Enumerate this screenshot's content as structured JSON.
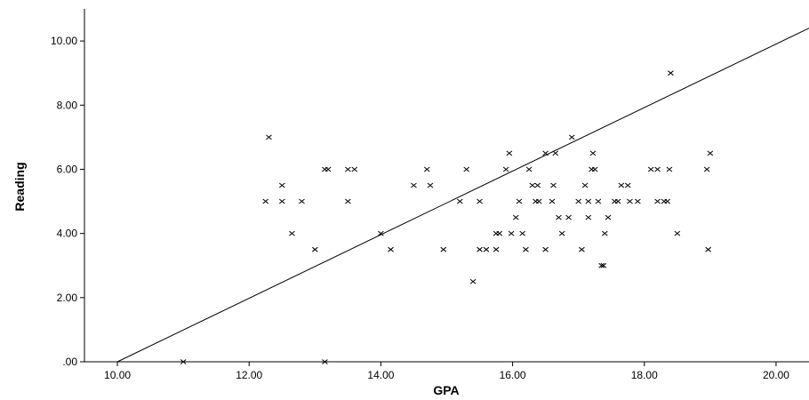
{
  "chart_data": {
    "type": "scatter",
    "xlabel": "GPA",
    "ylabel": "Reading",
    "xlim": [
      9.5,
      20.5
    ],
    "ylim": [
      0,
      11.0
    ],
    "xticks": [
      10,
      12,
      14,
      16,
      18,
      20
    ],
    "xtick_labels": [
      "10.00",
      "12.00",
      "14.00",
      "16.00",
      "18.00",
      "20.00"
    ],
    "yticks": [
      0,
      2,
      4,
      6,
      8,
      10
    ],
    "ytick_labels": [
      ".00",
      "2.00",
      "4.00",
      "6.00",
      "8.00",
      "10.00"
    ],
    "grid": false,
    "marker": "x",
    "colors": {
      "points": "#000000",
      "line": "#000000",
      "axes": "#000000"
    },
    "reference_line": {
      "from": [
        10.0,
        0.0
      ],
      "to": [
        20.5,
        10.4
      ]
    },
    "points": [
      [
        11.0,
        0.0
      ],
      [
        12.25,
        5.0
      ],
      [
        12.3,
        7.0
      ],
      [
        12.5,
        5.5
      ],
      [
        12.5,
        5.0
      ],
      [
        12.65,
        4.0
      ],
      [
        12.8,
        5.0
      ],
      [
        13.0,
        3.5
      ],
      [
        13.15,
        6.0
      ],
      [
        13.2,
        6.0
      ],
      [
        13.15,
        0.0
      ],
      [
        13.5,
        6.0
      ],
      [
        13.5,
        5.0
      ],
      [
        13.6,
        6.0
      ],
      [
        14.0,
        4.0
      ],
      [
        14.15,
        3.5
      ],
      [
        14.5,
        5.5
      ],
      [
        14.7,
        6.0
      ],
      [
        14.75,
        5.5
      ],
      [
        14.95,
        3.5
      ],
      [
        15.2,
        5.0
      ],
      [
        15.3,
        6.0
      ],
      [
        15.4,
        2.5
      ],
      [
        15.5,
        5.0
      ],
      [
        15.5,
        3.5
      ],
      [
        15.6,
        3.5
      ],
      [
        15.75,
        3.5
      ],
      [
        15.75,
        4.0
      ],
      [
        15.8,
        4.0
      ],
      [
        15.9,
        6.0
      ],
      [
        15.95,
        6.5
      ],
      [
        15.98,
        4.0
      ],
      [
        16.05,
        4.5
      ],
      [
        16.1,
        5.0
      ],
      [
        16.15,
        4.0
      ],
      [
        16.2,
        3.5
      ],
      [
        16.25,
        6.0
      ],
      [
        16.3,
        5.5
      ],
      [
        16.35,
        5.0
      ],
      [
        16.38,
        5.5
      ],
      [
        16.4,
        5.0
      ],
      [
        16.5,
        3.5
      ],
      [
        16.5,
        6.5
      ],
      [
        16.6,
        5.0
      ],
      [
        16.62,
        5.5
      ],
      [
        16.65,
        6.5
      ],
      [
        16.7,
        4.5
      ],
      [
        16.75,
        4.0
      ],
      [
        16.85,
        4.5
      ],
      [
        16.9,
        7.0
      ],
      [
        17.0,
        5.0
      ],
      [
        17.05,
        3.5
      ],
      [
        17.1,
        5.5
      ],
      [
        17.15,
        5.0
      ],
      [
        17.15,
        4.5
      ],
      [
        17.2,
        6.0
      ],
      [
        17.22,
        6.5
      ],
      [
        17.25,
        6.0
      ],
      [
        17.3,
        5.0
      ],
      [
        17.35,
        3.0
      ],
      [
        17.38,
        3.0
      ],
      [
        17.4,
        4.0
      ],
      [
        17.45,
        4.5
      ],
      [
        17.55,
        5.0
      ],
      [
        17.6,
        5.0
      ],
      [
        17.65,
        5.5
      ],
      [
        17.75,
        5.5
      ],
      [
        17.78,
        5.0
      ],
      [
        17.9,
        5.0
      ],
      [
        18.1,
        6.0
      ],
      [
        18.2,
        6.0
      ],
      [
        18.2,
        5.0
      ],
      [
        18.3,
        5.0
      ],
      [
        18.35,
        5.0
      ],
      [
        18.38,
        6.0
      ],
      [
        18.4,
        9.0
      ],
      [
        18.5,
        4.0
      ],
      [
        18.95,
        6.0
      ],
      [
        18.97,
        3.5
      ],
      [
        19.0,
        6.5
      ]
    ]
  }
}
